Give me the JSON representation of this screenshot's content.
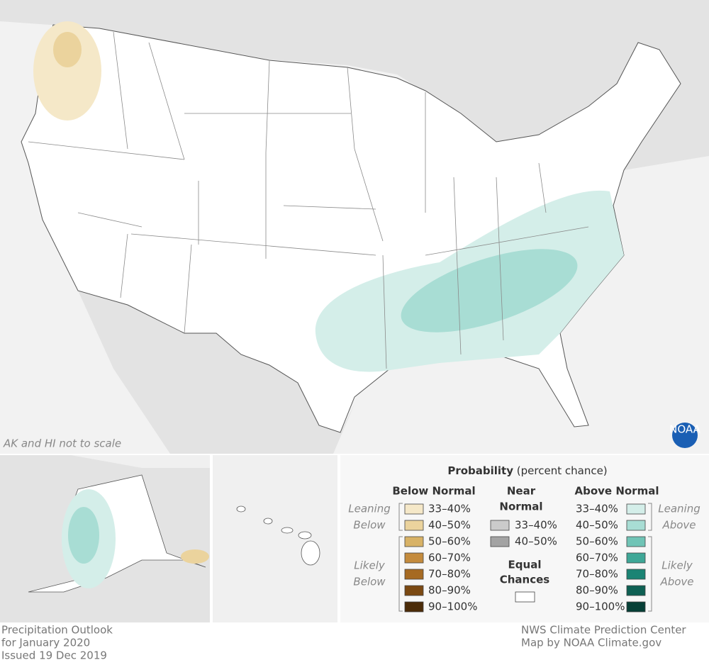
{
  "map": {
    "note": "AK and HI not to scale",
    "logo": "NOAA"
  },
  "legend": {
    "title": "Probability",
    "subtitle": "(percent chance)",
    "below": {
      "heading": "Below Normal",
      "items": [
        {
          "label": "33–40%",
          "color": "#f5e8c8"
        },
        {
          "label": "40–50%",
          "color": "#ebd39d"
        },
        {
          "label": "50–60%",
          "color": "#d8b266"
        },
        {
          "label": "60–70%",
          "color": "#c48b3d"
        },
        {
          "label": "70–80%",
          "color": "#a66a22"
        },
        {
          "label": "80–90%",
          "color": "#7b4912"
        },
        {
          "label": "90–100%",
          "color": "#4b2b08"
        }
      ]
    },
    "near": {
      "heading": [
        "Near",
        "Normal"
      ],
      "items": [
        {
          "label": "33–40%",
          "color": "#cbcbcb"
        },
        {
          "label": "40–50%",
          "color": "#a3a3a3"
        }
      ]
    },
    "equal": {
      "heading": [
        "Equal",
        "Chances"
      ],
      "color": "#ffffff"
    },
    "above": {
      "heading": "Above Normal",
      "items": [
        {
          "label": "33–40%",
          "color": "#d4eee9"
        },
        {
          "label": "40–50%",
          "color": "#a8ddd4"
        },
        {
          "label": "50–60%",
          "color": "#70c4b6"
        },
        {
          "label": "60–70%",
          "color": "#3fa797"
        },
        {
          "label": "70–80%",
          "color": "#1b8474"
        },
        {
          "label": "80–90%",
          "color": "#0e6053"
        },
        {
          "label": "90–100%",
          "color": "#063f36"
        }
      ]
    },
    "side_labels": {
      "leaning_below": [
        "Leaning",
        "Below"
      ],
      "likely_below": [
        "Likely",
        "Below"
      ],
      "leaning_above": [
        "Leaning",
        "Above"
      ],
      "likely_above": [
        "Likely",
        "Above"
      ]
    }
  },
  "footer": {
    "left": [
      "Precipitation Outlook",
      "for January 2020",
      "Issued 19 Dec 2019"
    ],
    "right": [
      "NWS Climate Prediction Center",
      "Map by NOAA Climate.gov"
    ]
  }
}
